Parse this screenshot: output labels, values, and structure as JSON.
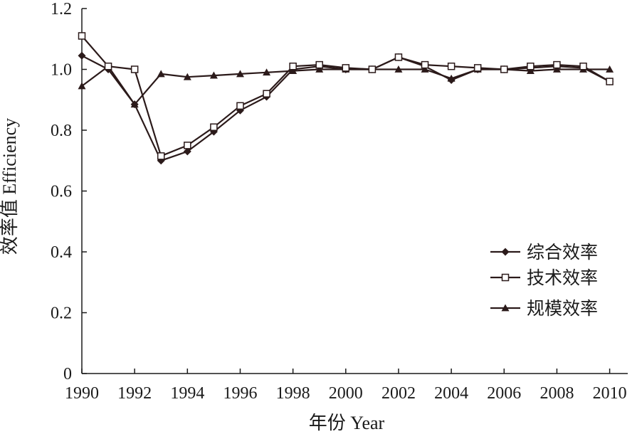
{
  "chart_data": {
    "type": "line",
    "xlabel": "年份 Year",
    "ylabel": "效率值 Efficiency",
    "xlim": [
      1990,
      2011
    ],
    "ylim": [
      0,
      1.2
    ],
    "x_ticks": [
      "1990",
      "1992",
      "1994",
      "1996",
      "1998",
      "2000",
      "2002",
      "2004",
      "2006",
      "2008",
      "2010"
    ],
    "y_ticks": [
      "0",
      "0.2",
      "0.4",
      "0.6",
      "0.8",
      "1.0",
      "1.2"
    ],
    "legend_position": "right",
    "line_color": "#2b1a1a",
    "x": [
      1990,
      1991,
      1992,
      1993,
      1994,
      1995,
      1996,
      1997,
      1998,
      1999,
      2000,
      2001,
      2002,
      2003,
      2004,
      2005,
      2006,
      2007,
      2008,
      2009,
      2010
    ],
    "series": [
      {
        "name": "综合效率",
        "marker": "diamond",
        "values": [
          1.045,
          1.0,
          0.885,
          0.7,
          0.73,
          0.795,
          0.865,
          0.91,
          1.0,
          1.01,
          1.0,
          1.0,
          1.04,
          1.01,
          0.965,
          1.0,
          1.0,
          1.005,
          1.01,
          1.005,
          0.96
        ]
      },
      {
        "name": "技术效率",
        "marker": "square",
        "values": [
          1.11,
          1.01,
          1.0,
          0.715,
          0.75,
          0.81,
          0.88,
          0.92,
          1.01,
          1.015,
          1.005,
          1.0,
          1.04,
          1.015,
          1.01,
          1.005,
          1.0,
          1.01,
          1.015,
          1.01,
          0.96
        ]
      },
      {
        "name": "规模效率",
        "marker": "triangle",
        "values": [
          0.945,
          1.01,
          0.885,
          0.985,
          0.975,
          0.98,
          0.985,
          0.99,
          0.995,
          1.0,
          1.0,
          1.0,
          1.0,
          1.0,
          0.97,
          1.0,
          1.0,
          0.995,
          1.0,
          1.0,
          1.0
        ]
      }
    ]
  }
}
